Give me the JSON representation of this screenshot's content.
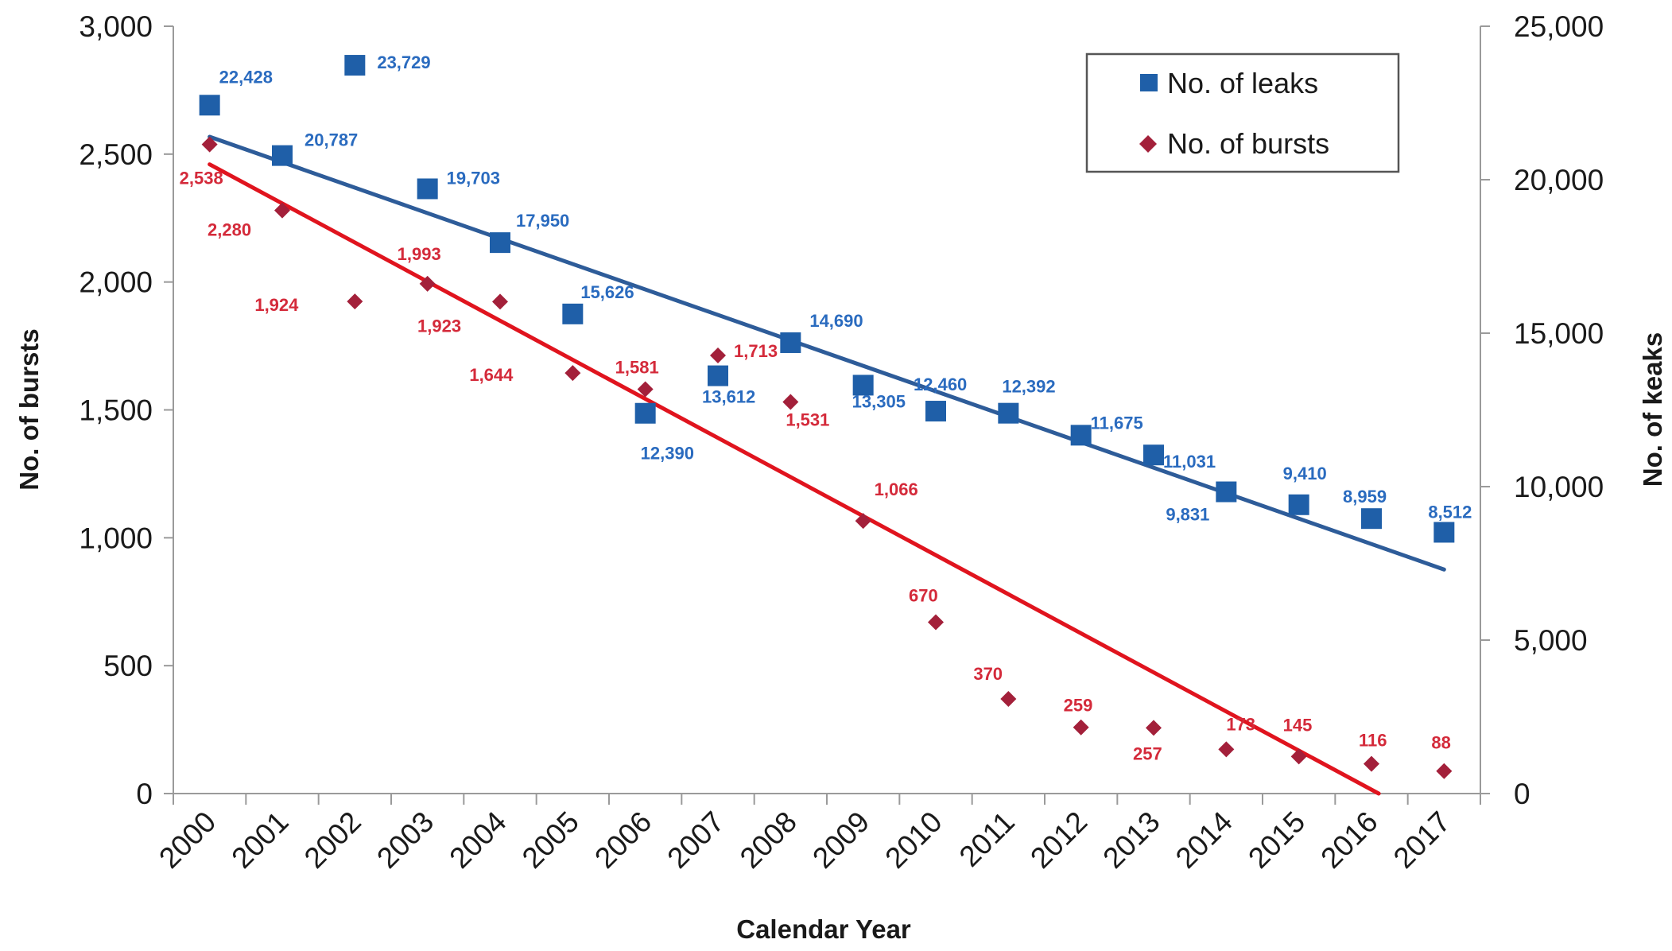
{
  "chart_data": {
    "type": "scatter",
    "title": "",
    "xlabel": "Calendar Year",
    "ylabel_left": "No. of bursts",
    "ylabel_right": "No. of keaks",
    "categories": [
      "2000",
      "2001",
      "2002",
      "2003",
      "2004",
      "2005",
      "2006",
      "2007",
      "2008",
      "2009",
      "2010",
      "2011",
      "2012",
      "2013",
      "2014",
      "2015",
      "2016",
      "2017"
    ],
    "ylim_left": [
      0,
      3000
    ],
    "yticks_left": [
      "0",
      "500",
      "1,000",
      "1,500",
      "2,000",
      "2,500",
      "3,000"
    ],
    "ylim_right": [
      0,
      25000
    ],
    "yticks_right": [
      "0",
      "5,000",
      "10,000",
      "15,000",
      "20,000",
      "25,000"
    ],
    "grid": false,
    "legend_position": "top-right",
    "series": [
      {
        "name": "No. of leaks",
        "axis": "right",
        "marker": "square",
        "color": "#1f5fa8",
        "label_color": "#2a6bbf",
        "values": [
          22428,
          20787,
          23729,
          19703,
          17950,
          15626,
          12390,
          13612,
          14690,
          13305,
          12460,
          12392,
          11675,
          11031,
          9831,
          9410,
          8959,
          8512
        ],
        "labels": [
          "22,428",
          "20,787",
          "23,729",
          "19,703",
          "17,950",
          "15,626",
          "12,390",
          "13,612",
          "14,690",
          "13,305",
          "12,460",
          "12,392",
          "11,675",
          "11,031",
          "9,831",
          "9,410",
          "8,959",
          "8,512"
        ],
        "trendline": {
          "color": "#2e5c99",
          "start": [
            2000,
            21400
          ],
          "end": [
            2017,
            7300
          ]
        }
      },
      {
        "name": "No. of bursts",
        "axis": "left",
        "marker": "diamond",
        "color": "#a3203a",
        "label_color": "#d42a3a",
        "values": [
          2538,
          2280,
          1924,
          1993,
          1923,
          1644,
          1581,
          1713,
          1531,
          1066,
          670,
          370,
          259,
          257,
          173,
          145,
          116,
          88
        ],
        "labels": [
          "2,538",
          "2,280",
          "1,924",
          "1,993",
          "1,923",
          "1,644",
          "1,581",
          "1,713",
          "1,531",
          "1,066",
          "670",
          "370",
          "259",
          "257",
          "173",
          "145",
          "116",
          "88"
        ],
        "trendline": {
          "color": "#e0141e",
          "start": [
            2000,
            2460
          ],
          "end": [
            2016.1,
            0
          ]
        }
      }
    ]
  }
}
